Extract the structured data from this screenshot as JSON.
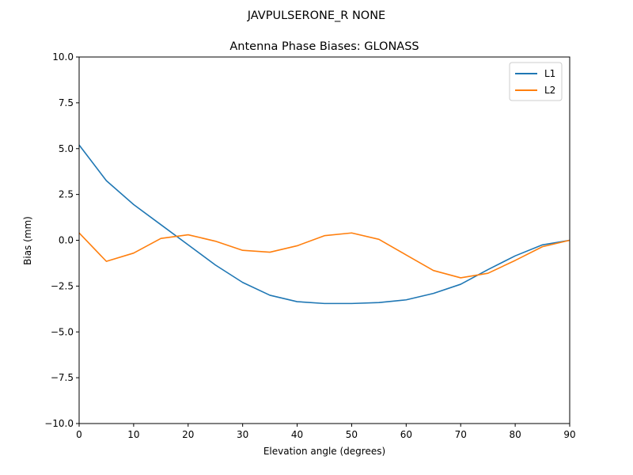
{
  "suptitle": "JAVPULSERONE_R  NONE",
  "chart_data": {
    "type": "line",
    "title": "Antenna Phase Biases: GLONASS",
    "xlabel": "Elevation angle (degrees)",
    "ylabel": "Bias (mm)",
    "xlim": [
      0,
      90
    ],
    "ylim": [
      -10,
      10
    ],
    "x_ticks": [
      0,
      10,
      20,
      30,
      40,
      50,
      60,
      70,
      80,
      90
    ],
    "x_tick_labels": [
      "0",
      "10",
      "20",
      "30",
      "40",
      "50",
      "60",
      "70",
      "80",
      "90"
    ],
    "y_ticks": [
      -10,
      -7.5,
      -5,
      -2.5,
      0,
      2.5,
      5,
      7.5,
      10
    ],
    "y_tick_labels": [
      "−10.0",
      "−7.5",
      "−5.0",
      "−2.5",
      "0.0",
      "2.5",
      "5.0",
      "7.5",
      "10.0"
    ],
    "grid": false,
    "legend_position": "top-right",
    "x": [
      0,
      5,
      10,
      15,
      20,
      25,
      30,
      35,
      40,
      45,
      50,
      55,
      60,
      65,
      70,
      75,
      80,
      85,
      90
    ],
    "series": [
      {
        "name": "L1",
        "color": "#1f77b4",
        "values": [
          5.2,
          3.25,
          1.95,
          0.85,
          -0.25,
          -1.35,
          -2.3,
          -3.0,
          -3.35,
          -3.45,
          -3.45,
          -3.4,
          -3.25,
          -2.9,
          -2.4,
          -1.6,
          -0.85,
          -0.25,
          0.0
        ]
      },
      {
        "name": "L2",
        "color": "#ff7f0e",
        "values": [
          0.4,
          -1.15,
          -0.7,
          0.1,
          0.3,
          -0.05,
          -0.55,
          -0.65,
          -0.3,
          0.25,
          0.4,
          0.05,
          -0.8,
          -1.65,
          -2.05,
          -1.8,
          -1.1,
          -0.35,
          0.0
        ]
      }
    ]
  }
}
